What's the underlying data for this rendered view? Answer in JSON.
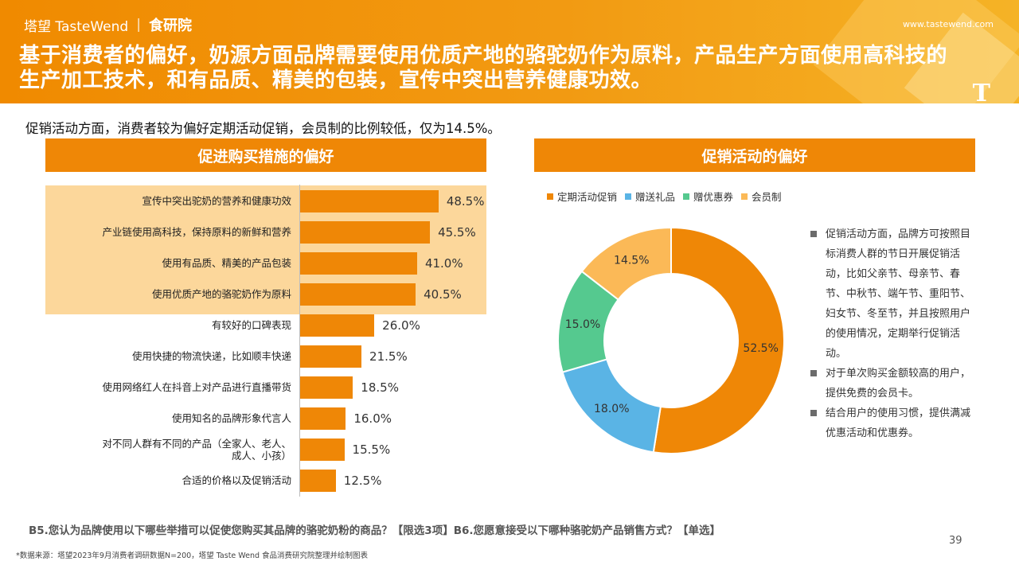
{
  "header": {
    "brand_left": "塔望 TasteWend",
    "brand_sep": "|",
    "brand_right": "食研院",
    "website": "www.tastewend.com",
    "corner_mark": "T",
    "headline": "基于消费者的偏好，奶源方面品牌需要使用优质产地的骆驼奶作为原料，产品生产方面使用高科技的生产加工技术，和有品质、精美的包装，宣传中突出营养健康功效。",
    "subline": "促销活动方面，消费者较为偏好定期活动促销，会员制的比例较低，仅为14.5%。"
  },
  "panels": {
    "left_title": "促进购买措施的偏好",
    "right_title": "促销活动的偏好"
  },
  "colors": {
    "accent": "#ef8706",
    "highlight": "#fcd79b",
    "pie": [
      "#ef8706",
      "#5ab4e5",
      "#55c98f",
      "#fbb957"
    ]
  },
  "chart_data": [
    {
      "type": "bar",
      "orientation": "horizontal",
      "title": "促进购买措施的偏好",
      "categories": [
        "宣传中突出驼奶的营养和健康功效",
        "产业链使用高科技，保持原料的新鲜和营养",
        "使用有品质、精美的产品包装",
        "使用优质产地的骆驼奶作为原料",
        "有较好的口碑表现",
        "使用快捷的物流快递，比如顺丰快递",
        "使用网络红人在抖音上对产品进行直播带货",
        "使用知名的品牌形象代言人",
        "对不同人群有不同的产品（全家人、老人、成人、小孩）",
        "合适的价格以及促销活动"
      ],
      "values": [
        48.5,
        45.5,
        41.0,
        40.5,
        26.0,
        21.5,
        18.5,
        16.0,
        15.5,
        12.5
      ],
      "value_labels": [
        "48.5%",
        "45.5%",
        "41.0%",
        "40.5%",
        "26.0%",
        "21.5%",
        "18.5%",
        "16.0%",
        "15.5%",
        "12.5%"
      ],
      "highlighted_rows": [
        0,
        1,
        2,
        3
      ]
    },
    {
      "type": "pie",
      "style": "donut",
      "title": "促销活动的偏好",
      "legend_position": "top",
      "labels": [
        "定期活动促销",
        "赠送礼品",
        "赠优惠券",
        "会员制"
      ],
      "values": [
        52.5,
        18.0,
        15.0,
        14.5
      ],
      "value_labels": [
        "52.5%",
        "18.0%",
        "15.0%",
        "14.5%"
      ]
    }
  ],
  "notes": [
    "促销活动方面，品牌方可按照目标消费人群的节日开展促销活动，比如父亲节、母亲节、春节、中秋节、端午节、重阳节、妇女节、冬至节，并且按照用户的使用情况，定期举行促销活动。",
    "对于单次购买金额较高的用户，提供免费的会员卡。",
    "结合用户的使用习惯，提供满减优惠活动和优惠券。"
  ],
  "footer": {
    "question": "B5.您认为品牌使用以下哪些举措可以促使您购买其品牌的骆驼奶粉的商品？【限选3项】B6.您愿意接受以下哪种骆驼奶产品销售方式？【单选】",
    "source": "*数据来源：塔望2023年9月消费者调研数据N=200，塔望 Taste Wend 食品消费研究院整理并绘制图表",
    "page_number": "39"
  }
}
